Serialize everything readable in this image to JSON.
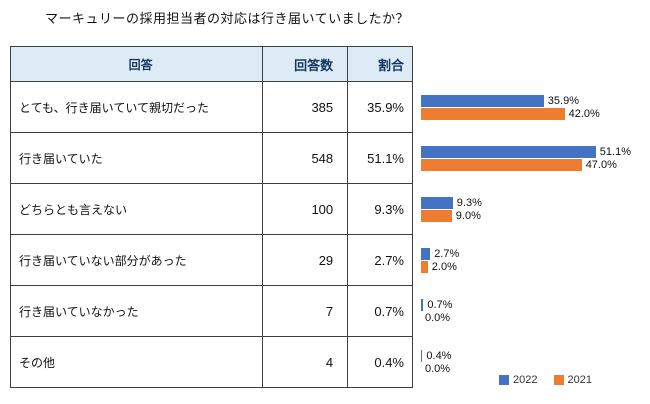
{
  "title": "マーキュリーの採用担当者の対応は行き届いていましたか？",
  "table": {
    "headers": {
      "answer": "回答",
      "count": "回答数",
      "percent": "割合"
    },
    "rows": [
      {
        "answer": "とても、行き届いていて親切だった",
        "count": "385",
        "percent": "35.9%"
      },
      {
        "answer": "行き届いていた",
        "count": "548",
        "percent": "51.1%"
      },
      {
        "answer": "どちらとも言えない",
        "count": "100",
        "percent": "9.3%"
      },
      {
        "answer": "行き届いていない部分があった",
        "count": "29",
        "percent": "2.7%"
      },
      {
        "answer": "行き届いていなかった",
        "count": "7",
        "percent": "0.7%"
      },
      {
        "answer": "その他",
        "count": "4",
        "percent": "0.4%"
      }
    ]
  },
  "legend": [
    {
      "label": "2022",
      "color": "#4472C4"
    },
    {
      "label": "2021",
      "color": "#ED7D31"
    }
  ],
  "chart_data": {
    "type": "bar",
    "orientation": "horizontal",
    "title": "マーキュリーの採用担当者の対応は行き届いていましたか？",
    "categories": [
      "とても、行き届いていて親切だった",
      "行き届いていた",
      "どちらとも言えない",
      "行き届いていない部分があった",
      "行き届いていなかった",
      "その他"
    ],
    "series": [
      {
        "name": "2022",
        "color": "#4472C4",
        "values": [
          35.9,
          51.1,
          9.3,
          2.7,
          0.7,
          0.4
        ],
        "labels": [
          "35.9%",
          "51.1%",
          "9.3%",
          "2.7%",
          "0.7%",
          "0.4%"
        ]
      },
      {
        "name": "2021",
        "color": "#ED7D31",
        "values": [
          42.0,
          47.0,
          9.0,
          2.0,
          0.0,
          0.0
        ],
        "labels": [
          "42.0%",
          "47.0%",
          "9.0%",
          "2.0%",
          "0.0%",
          "0.0%"
        ]
      }
    ],
    "xlim": [
      0,
      60
    ],
    "grid": false,
    "legend_position": "bottom-right"
  }
}
